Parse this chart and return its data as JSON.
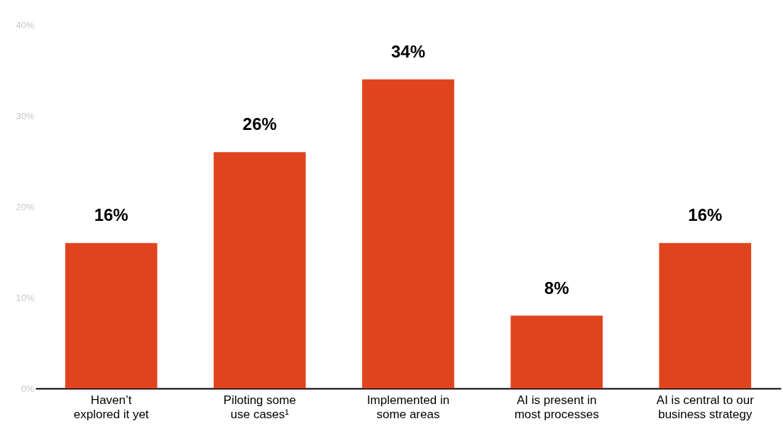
{
  "chart_data": {
    "type": "bar",
    "categories": [
      "Haven’t\nexplored it yet",
      "Piloting some\nuse cases¹",
      "Implemented in\nsome areas",
      "AI is present in\nmost processes",
      "AI is central to our\nbusiness strategy"
    ],
    "values": [
      16,
      26,
      34,
      8,
      16
    ],
    "color": "#e0441e",
    "ylim": [
      0,
      40
    ],
    "yticks": [
      {
        "value": 0,
        "label": "0%"
      },
      {
        "value": 10,
        "label": "10%"
      },
      {
        "value": 20,
        "label": "20%"
      },
      {
        "value": 30,
        "label": "30%"
      },
      {
        "value": 40,
        "label": "40%"
      }
    ],
    "value_labels": [
      "16%",
      "26%",
      "34%",
      "8%",
      "16%"
    ],
    "grid": false
  }
}
